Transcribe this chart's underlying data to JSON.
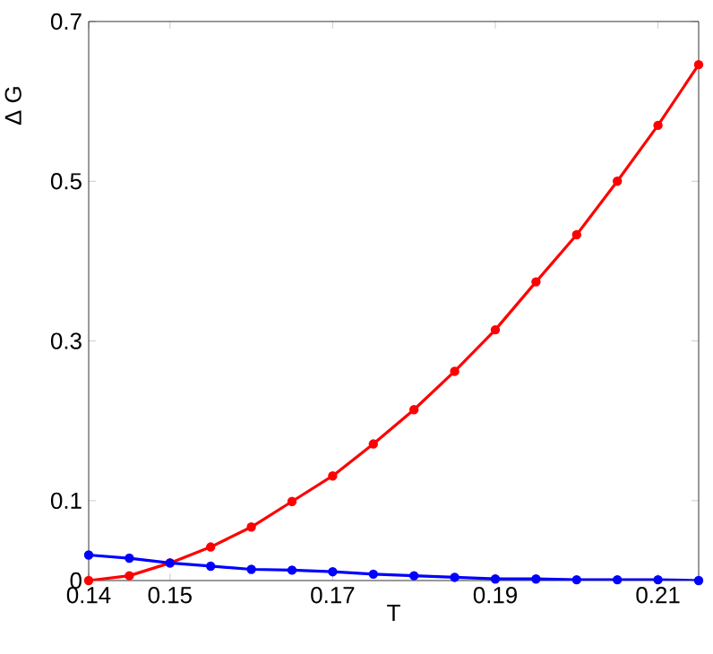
{
  "chart_data": {
    "type": "line",
    "xlabel": "T",
    "ylabel": "Δ G",
    "x": [
      0.14,
      0.145,
      0.15,
      0.155,
      0.16,
      0.165,
      0.17,
      0.175,
      0.18,
      0.185,
      0.19,
      0.195,
      0.2,
      0.205,
      0.21,
      0.215
    ],
    "series": [
      {
        "color": "#ff0000",
        "values": [
          0,
          0.006,
          0.022,
          0.042,
          0.067,
          0.099,
          0.131,
          0.171,
          0.214,
          0.262,
          0.314,
          0.374,
          0.433,
          0.5,
          0.57,
          0.646
        ]
      },
      {
        "color": "#0000ff",
        "values": [
          0.032,
          0.028,
          0.022,
          0.018,
          0.014,
          0.013,
          0.011,
          0.008,
          0.006,
          0.004,
          0.002,
          0.002,
          0.001,
          0.001,
          0.001,
          0
        ]
      }
    ],
    "xlim": [
      0.14,
      0.215
    ],
    "ylim": [
      0,
      0.7
    ],
    "xticks": [
      0.14,
      0.15,
      0.17,
      0.19,
      0.21
    ],
    "yticks": [
      0,
      0.1,
      0.3,
      0.5,
      0.7
    ],
    "grid": false,
    "marker": "circle",
    "line_style": "solid"
  }
}
